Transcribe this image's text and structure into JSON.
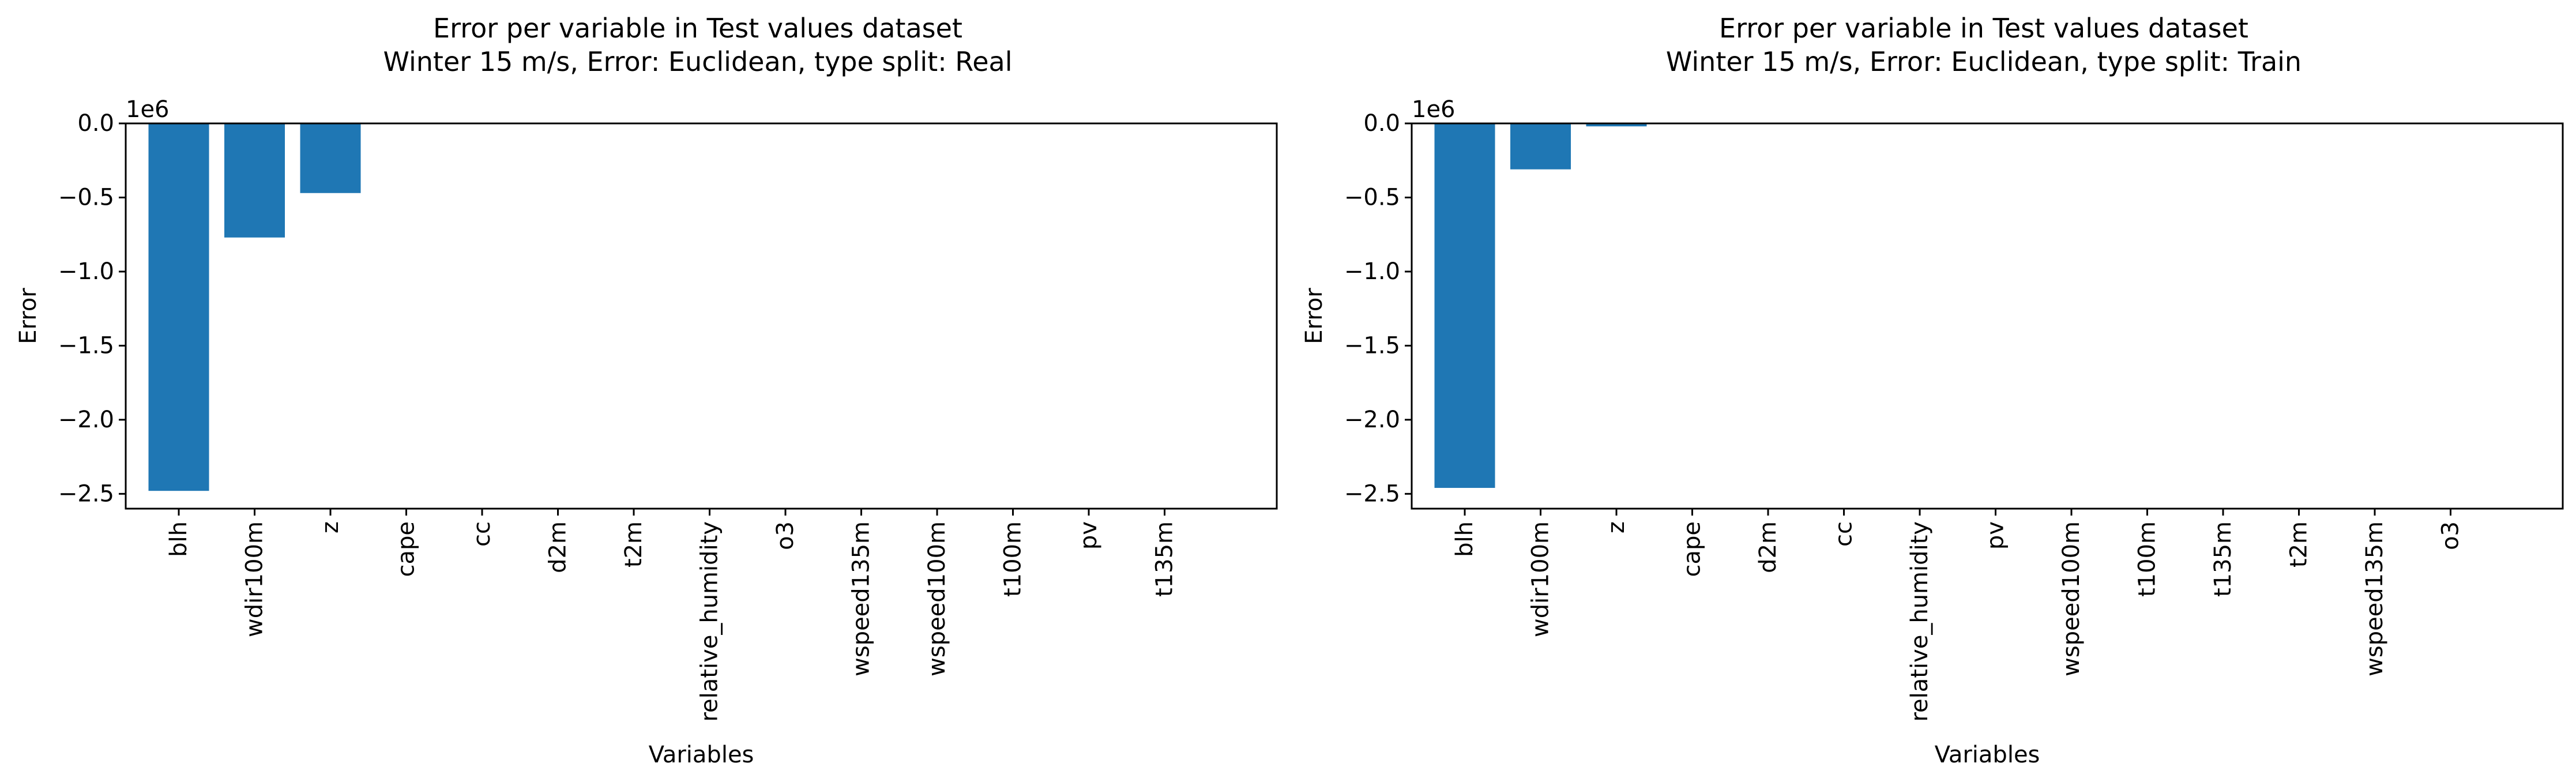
{
  "chart_data": [
    {
      "type": "bar",
      "title": "Error per variable in Test values dataset",
      "subtitle": "Winter 15 m/s, Error: Euclidean, type split: Real",
      "xlabel": "Variables",
      "ylabel": "Error",
      "offset_label": "1e6",
      "ylim": [
        -2.6,
        0.0
      ],
      "yticks": [
        0.0,
        -0.5,
        -1.0,
        -1.5,
        -2.0,
        -2.5
      ],
      "ytick_labels": [
        "0.0",
        "−0.5",
        "−1.0",
        "−1.5",
        "−2.0",
        "−2.5"
      ],
      "categories": [
        "blh",
        "wdir100m",
        "z",
        "cape",
        "cc",
        "d2m",
        "t2m",
        "relative_humidity",
        "o3",
        "wspeed135m",
        "wspeed100m",
        "t100m",
        "pv",
        "t135m"
      ],
      "values": [
        -2.48,
        -0.77,
        -0.47,
        0,
        0,
        0,
        0,
        0,
        0,
        0,
        0,
        0,
        0,
        0
      ],
      "value_scale": 1000000,
      "color": "#1f77b4",
      "grid": false
    },
    {
      "type": "bar",
      "title": "Error per variable in Test values dataset",
      "subtitle": "Winter 15 m/s, Error: Euclidean, type split: Train",
      "xlabel": "Variables",
      "ylabel": "Error",
      "offset_label": "1e6",
      "ylim": [
        -2.6,
        0.0
      ],
      "yticks": [
        0.0,
        -0.5,
        -1.0,
        -1.5,
        -2.0,
        -2.5
      ],
      "ytick_labels": [
        "0.0",
        "−0.5",
        "−1.0",
        "−1.5",
        "−2.0",
        "−2.5"
      ],
      "categories": [
        "blh",
        "wdir100m",
        "z",
        "cape",
        "d2m",
        "cc",
        "relative_humidity",
        "pv",
        "wspeed100m",
        "t100m",
        "t135m",
        "t2m",
        "wspeed135m",
        "o3"
      ],
      "values": [
        -2.46,
        -0.31,
        -0.02,
        0,
        0,
        0,
        0,
        0,
        0,
        0,
        0,
        0,
        0,
        0
      ],
      "value_scale": 1000000,
      "color": "#1f77b4",
      "grid": false
    }
  ]
}
